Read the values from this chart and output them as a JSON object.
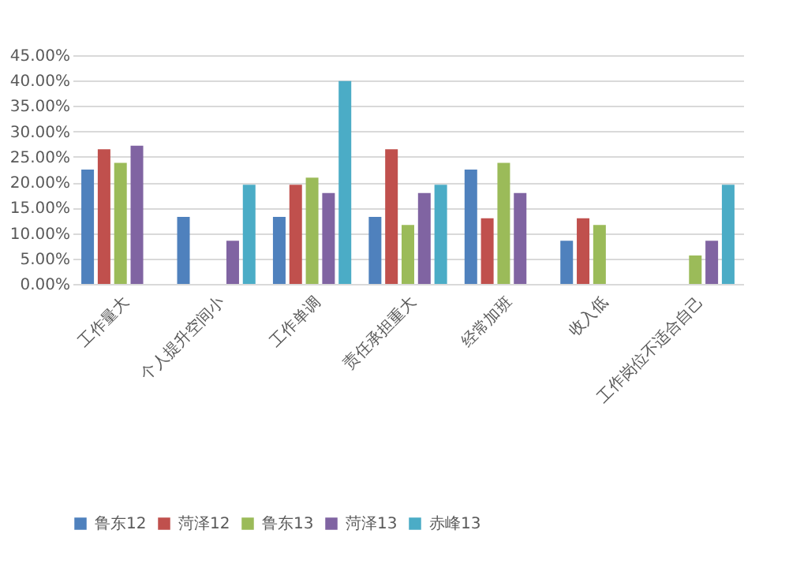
{
  "chart_data": {
    "type": "bar",
    "categories": [
      "工作量大",
      "个人提升空间小",
      "工作单调",
      "责任承担重大",
      "经常加班",
      "收入低",
      "工作岗位不适合自己"
    ],
    "series": [
      {
        "name": "鲁东12",
        "color": "#4f81bd",
        "values": [
          22.5,
          13.2,
          13.2,
          13.2,
          22.5,
          8.5,
          null
        ]
      },
      {
        "name": "菏泽12",
        "color": "#c0504d",
        "values": [
          26.5,
          null,
          19.5,
          26.5,
          12.9,
          12.9,
          null
        ]
      },
      {
        "name": "鲁东13",
        "color": "#9bbb59",
        "values": [
          23.8,
          null,
          20.9,
          11.6,
          23.8,
          11.6,
          5.6
        ]
      },
      {
        "name": "菏泽13",
        "color": "#8064a2",
        "values": [
          27.2,
          8.5,
          17.9,
          17.9,
          17.9,
          null,
          8.5
        ]
      },
      {
        "name": "赤峰13",
        "color": "#4bacc6",
        "values": [
          null,
          19.5,
          39.9,
          19.5,
          null,
          null,
          19.5
        ]
      }
    ],
    "ylim": [
      0,
      45
    ],
    "yticks": [
      {
        "value": 0,
        "label": "0.00%"
      },
      {
        "value": 5,
        "label": "5.00%"
      },
      {
        "value": 10,
        "label": "10.00%"
      },
      {
        "value": 15,
        "label": "15.00%"
      },
      {
        "value": 20,
        "label": "20.00%"
      },
      {
        "value": 25,
        "label": "25.00%"
      },
      {
        "value": 30,
        "label": "30.00%"
      },
      {
        "value": 35,
        "label": "35.00%"
      },
      {
        "value": 40,
        "label": "40.00%"
      },
      {
        "value": 45,
        "label": "45.00%"
      }
    ],
    "grid": "y",
    "legend": "bottom"
  }
}
